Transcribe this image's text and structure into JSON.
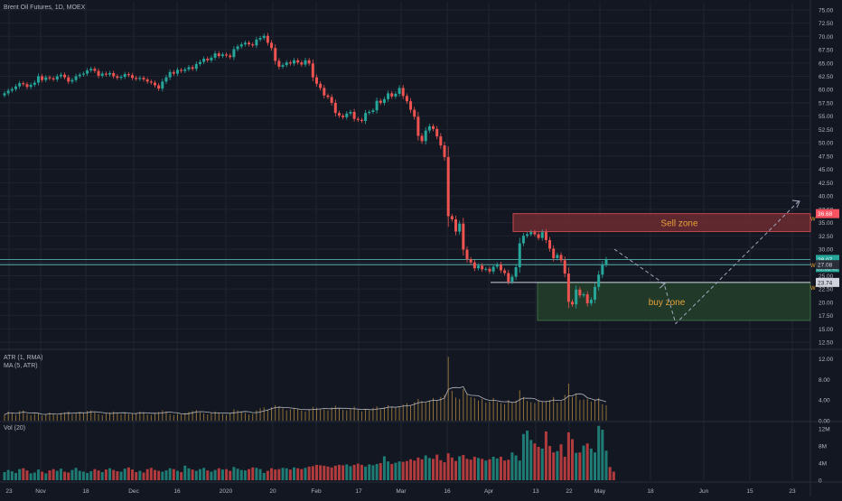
{
  "header": {
    "symbol_title": "Brent Oil Futures, 1D, MOEX"
  },
  "atr_pane": {
    "label_atr": "ATR (1, RMA)",
    "label_ma": "MA (5, ATR)",
    "ticks": [
      "12.00",
      "8.00",
      "4.00",
      "0.00"
    ]
  },
  "vol_pane": {
    "label": "Vol (20)",
    "ticks": [
      "12M",
      "8M",
      "4M",
      "0"
    ]
  },
  "price_axis": {
    "ticks": [
      "75.00",
      "72.50",
      "70.00",
      "67.50",
      "65.00",
      "62.50",
      "60.00",
      "57.50",
      "55.00",
      "52.50",
      "50.00",
      "47.50",
      "45.00",
      "42.50",
      "40.00",
      "37.50",
      "35.00",
      "32.50",
      "30.00",
      "27.50",
      "25.00",
      "22.50",
      "20.00",
      "17.50",
      "15.00",
      "12.50"
    ],
    "sell_tag": "36.68",
    "last_price_tag": "28.07",
    "countdown_tag": "09:08:49",
    "secondary_tag": "27.08",
    "support_tag": "23.74",
    "w_marker": "W"
  },
  "time_axis": {
    "labels": [
      "23",
      "Nov",
      "18",
      "Dec",
      "16",
      "2020",
      "20",
      "Feb",
      "17",
      "Mar",
      "16",
      "Apr",
      "13",
      "22",
      "May",
      "18",
      "Jun",
      "15",
      "23"
    ]
  },
  "zones": {
    "sell_label": "Sell zone",
    "buy_label": "buy zone"
  },
  "colors": {
    "background": "#131722",
    "grid": "#1f2430",
    "up": "#26a69a",
    "down": "#ef5350",
    "sell_fill": "#7a2d33",
    "buy_fill": "#23402a",
    "zone_text": "#e8a33a",
    "hline": "#c9d1e0",
    "teal_line": "#5ec7c0",
    "atr_line": "#b2b5be",
    "dashed": "#9fa6bd"
  },
  "chart_data": {
    "type": "candlestick",
    "title": "Brent Oil Futures, 1D, MOEX",
    "y_axis_ticks": [
      75.0,
      72.5,
      70.0,
      67.5,
      65.0,
      62.5,
      60.0,
      57.5,
      55.0,
      52.5,
      50.0,
      47.5,
      45.0,
      42.5,
      40.0,
      37.5,
      35.0,
      32.5,
      30.0,
      27.5,
      25.0,
      22.5,
      20.0,
      17.5,
      15.0,
      12.5
    ],
    "ylim": [
      11.5,
      76.5
    ],
    "close_series": [
      59.3,
      59.8,
      60.1,
      60.6,
      61.2,
      61.0,
      60.5,
      60.9,
      61.3,
      62.5,
      61.8,
      62.3,
      62.1,
      61.9,
      62.5,
      62.8,
      62.3,
      61.5,
      61.8,
      62.5,
      62.8,
      63.0,
      63.6,
      63.9,
      63.5,
      62.6,
      63.0,
      62.8,
      63.1,
      62.5,
      62.2,
      62.4,
      62.9,
      62.7,
      62.2,
      62.0,
      62.2,
      61.9,
      61.5,
      61.3,
      60.8,
      60.2,
      61.5,
      62.3,
      63.3,
      63.0,
      63.7,
      63.5,
      63.8,
      64.2,
      63.9,
      64.8,
      65.2,
      65.8,
      65.5,
      66.0,
      66.8,
      66.3,
      66.6,
      66.4,
      66.1,
      67.6,
      68.1,
      68.5,
      68.8,
      68.5,
      68.3,
      69.4,
      69.7,
      70.1,
      68.8,
      67.8,
      65.4,
      64.3,
      64.6,
      65.1,
      64.9,
      65.5,
      65.1,
      64.7,
      65.5,
      64.9,
      62.3,
      61.1,
      60.3,
      58.9,
      58.6,
      57.5,
      55.6,
      55.1,
      54.8,
      55.5,
      55.8,
      54.5,
      54.3,
      54.1,
      55.6,
      55.8,
      56.1,
      57.9,
      57.5,
      58.2,
      59.3,
      58.7,
      59.2,
      60.3,
      58.8,
      57.8,
      56.2,
      54.9,
      51.3,
      50.3,
      52.3,
      53.1,
      52.6,
      51.2,
      49.5,
      47.3,
      36.2,
      35.6,
      33.3,
      34.8,
      29.9,
      28.1,
      27.5,
      26.4,
      26.9,
      26.2,
      26.3,
      25.8,
      26.7,
      27.1,
      26.0,
      25.5,
      23.9,
      24.8,
      26.6,
      31.1,
      32.5,
      32.8,
      33.2,
      32.8,
      32.1,
      33.2,
      31.7,
      30.1,
      28.3,
      28.9,
      27.9,
      25.4,
      20.1,
      19.6,
      22.4,
      21.3,
      21.5,
      19.8,
      20.5,
      22.9,
      25.2,
      27.1,
      28.07
    ],
    "annotations": [
      {
        "type": "zone",
        "label": "Sell zone",
        "from": 33.3,
        "to": 36.68
      },
      {
        "type": "zone",
        "label": "buy zone",
        "from": 16.6,
        "to": 23.74
      },
      {
        "type": "hline",
        "value": 28.07
      },
      {
        "type": "hline",
        "value": 27.08
      },
      {
        "type": "hline",
        "value": 23.74
      },
      {
        "type": "projection",
        "path": [
          30.0,
          23.5,
          16.0,
          39.0
        ]
      }
    ],
    "atr_series": [
      1.2,
      1.8,
      1.5,
      1.1,
      1.9,
      2.0,
      1.3,
      1.1,
      1.3,
      1.5,
      1.0,
      1.2,
      1.6,
      1.3,
      1.1,
      1.5,
      1.6,
      1.8,
      1.2,
      1.4,
      1.7,
      1.5,
      1.9,
      2.0,
      1.6,
      1.3,
      1.1,
      1.4,
      1.6,
      1.8,
      1.6,
      1.2,
      1.5,
      1.3,
      1.4,
      1.5,
      1.8,
      1.6,
      1.2,
      1.1,
      1.5,
      1.7,
      2.0,
      1.8,
      1.3,
      1.1,
      1.3,
      1.2,
      1.5,
      1.7,
      1.9,
      2.1,
      1.6,
      1.4,
      1.2,
      1.5,
      1.8,
      1.6,
      1.3,
      1.1,
      1.4,
      2.2,
      2.0,
      1.8,
      1.5,
      1.2,
      1.3,
      2.0,
      2.4,
      2.6,
      2.1,
      2.6,
      3.0,
      2.8,
      2.4,
      2.0,
      2.2,
      2.5,
      2.3,
      2.0,
      1.8,
      2.1,
      2.7,
      2.5,
      2.3,
      2.2,
      2.0,
      2.6,
      2.9,
      2.4,
      2.1,
      2.0,
      2.3,
      2.7,
      2.1,
      1.8,
      2.2,
      2.0,
      2.5,
      2.8,
      2.2,
      2.6,
      3.0,
      2.7,
      2.5,
      2.8,
      3.1,
      3.4,
      3.0,
      3.6,
      4.2,
      3.8,
      3.5,
      3.9,
      4.4,
      4.0,
      4.6,
      5.0,
      12.4,
      5.8,
      4.5,
      4.2,
      6.1,
      5.2,
      4.6,
      4.4,
      3.9,
      4.2,
      3.5,
      3.7,
      4.4,
      3.6,
      3.4,
      3.2,
      4.0,
      3.5,
      3.9,
      5.9,
      4.6,
      3.8,
      3.6,
      3.4,
      4.0,
      3.7,
      3.8,
      4.0,
      4.6,
      3.5,
      3.8,
      5.0,
      7.2,
      4.6,
      5.3,
      4.0,
      4.1,
      4.2,
      3.7,
      4.0,
      4.4,
      3.2,
      3.0
    ],
    "vol_series_millions": [
      1.9,
      2.4,
      2.1,
      1.7,
      2.6,
      2.8,
      2.3,
      1.6,
      1.8,
      2.5,
      2.0,
      1.6,
      2.3,
      2.6,
      2.2,
      2.7,
      2.0,
      1.8,
      2.4,
      2.9,
      2.2,
      2.0,
      1.7,
      2.1,
      2.6,
      2.3,
      1.9,
      2.5,
      2.8,
      2.4,
      2.1,
      2.0,
      2.7,
      3.0,
      2.5,
      1.9,
      2.2,
      1.8,
      2.6,
      2.9,
      2.4,
      2.2,
      2.0,
      2.3,
      2.8,
      2.6,
      2.2,
      1.9,
      3.4,
      2.8,
      2.5,
      2.2,
      2.6,
      2.9,
      2.3,
      2.0,
      2.4,
      2.8,
      2.5,
      2.6,
      2.2,
      3.1,
      2.7,
      2.4,
      2.3,
      2.6,
      3.0,
      2.9,
      2.6,
      1.7,
      2.2,
      2.8,
      2.5,
      2.6,
      2.9,
      2.8,
      2.5,
      3.0,
      2.8,
      2.6,
      2.9,
      3.2,
      3.3,
      3.6,
      3.5,
      3.4,
      3.2,
      3.0,
      3.4,
      3.6,
      3.5,
      3.7,
      3.3,
      3.6,
      3.9,
      3.6,
      3.2,
      3.7,
      3.5,
      3.8,
      4.0,
      5.6,
      4.4,
      3.8,
      4.1,
      4.4,
      4.3,
      4.5,
      4.9,
      4.6,
      5.3,
      4.9,
      5.8,
      5.2,
      5.0,
      6.0,
      4.7,
      4.2,
      6.3,
      5.3,
      4.5,
      5.6,
      5.9,
      5.0,
      4.8,
      5.5,
      5.2,
      5.0,
      4.6,
      4.9,
      5.5,
      5.1,
      5.5,
      4.6,
      4.8,
      6.5,
      5.8,
      4.6,
      10.8,
      11.6,
      9.4,
      8.6,
      7.8,
      7.4,
      11.4,
      8.0,
      6.5,
      6.8,
      8.4,
      5.5,
      11.2,
      9.6,
      6.4,
      6.5,
      8.1,
      8.6,
      7.4,
      6.5,
      12.7,
      11.8,
      6.9,
      3.1,
      2.0
    ]
  }
}
